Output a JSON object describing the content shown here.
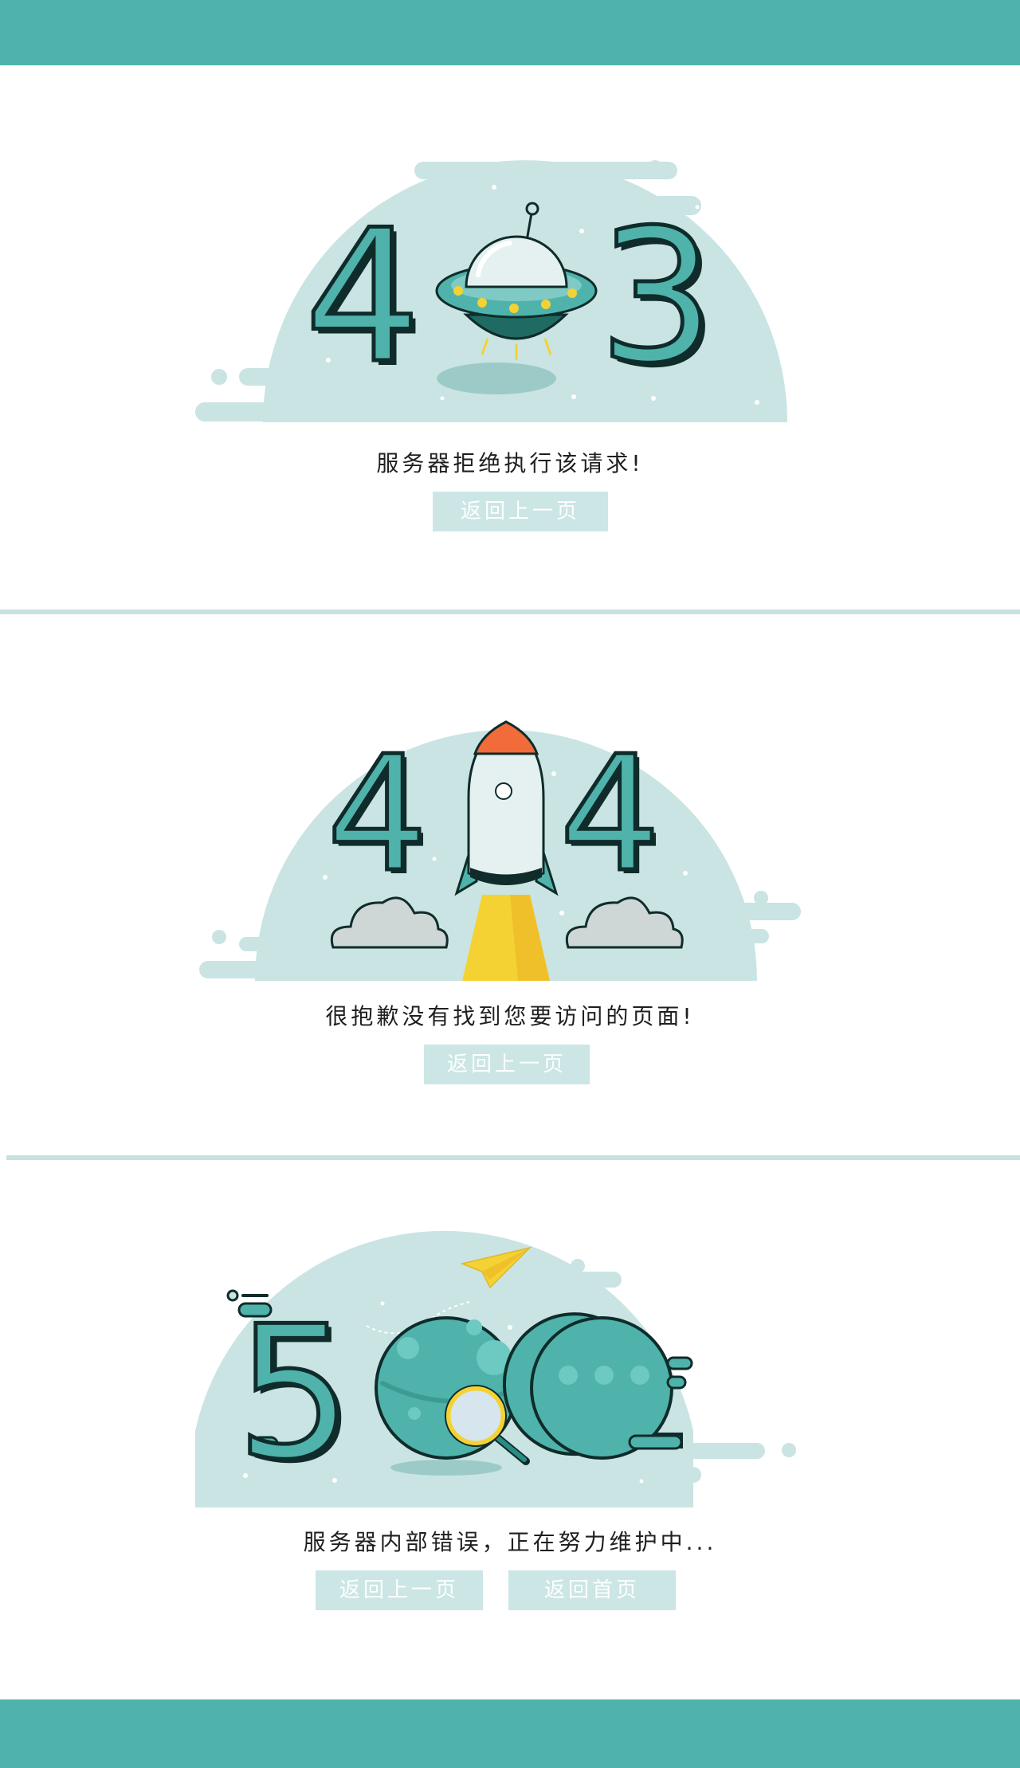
{
  "colors": {
    "accent": "#4fb3ab",
    "light_accent": "#c6e2e1",
    "button_bg": "#cbe6e5",
    "button_text": "#ffffff",
    "rocket_tip": "#f26b3a",
    "flame": "#f5d233"
  },
  "error_403": {
    "code_left": "4",
    "code_right": "3",
    "illustration_icon": "ufo-icon",
    "message": "服务器拒绝执行该请求!",
    "back_button": "返回上一页"
  },
  "error_404": {
    "code_left": "4",
    "code_right": "4",
    "illustration_icon": "rocket-icon",
    "message": "很抱歉没有找到您要访问的页面!",
    "back_button": "返回上一页"
  },
  "error_500": {
    "code_left": "5",
    "illustration_icons": [
      "planet-icon",
      "magnifier-icon",
      "paper-plane-icon",
      "chat-bubble-icon"
    ],
    "message": "服务器内部错误，正在努力维护中...",
    "back_button": "返回上一页",
    "home_button": "返回首页"
  }
}
